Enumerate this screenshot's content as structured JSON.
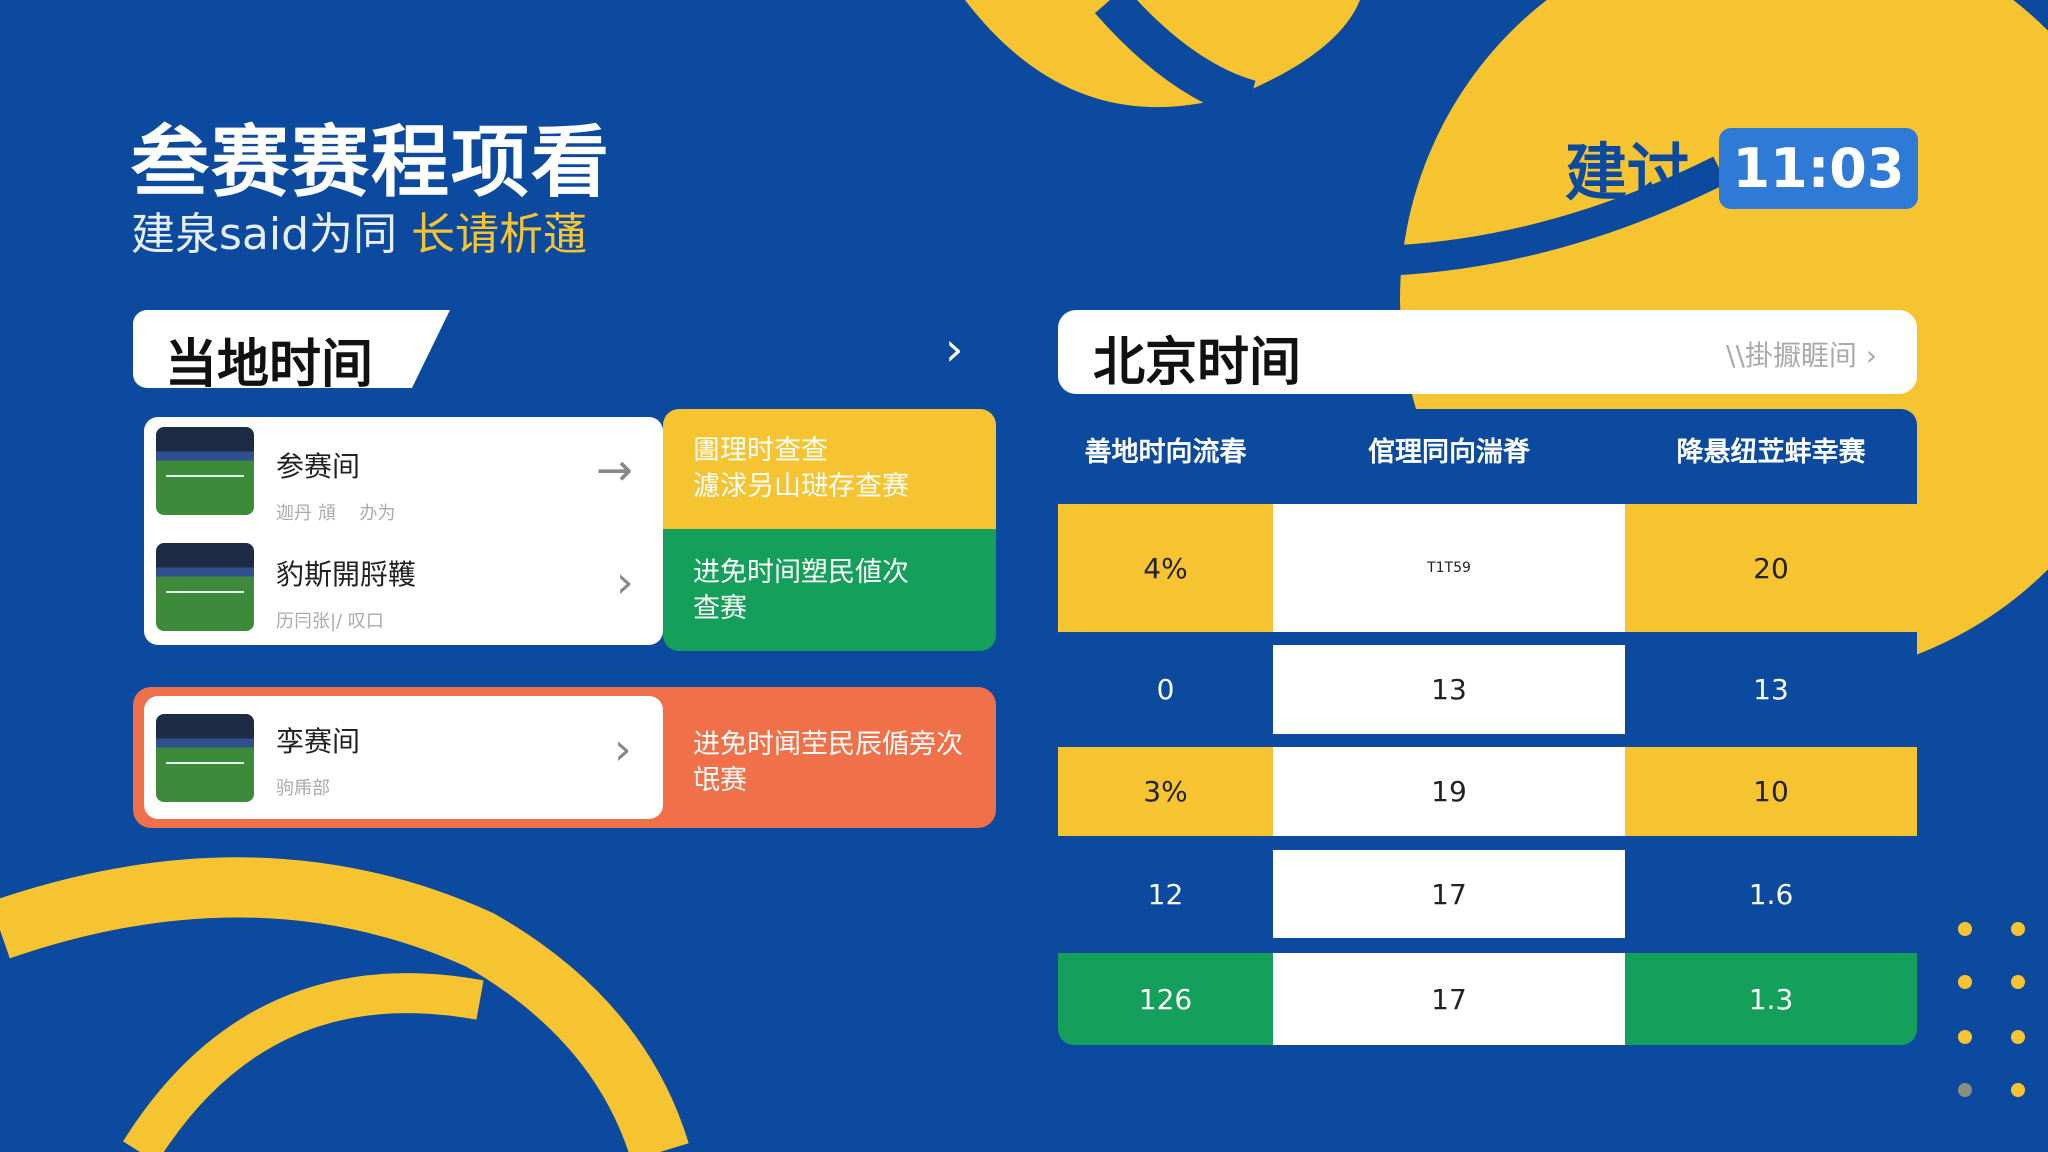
{
  "header": {
    "title": "叁赛赛程项看",
    "subtitle_plain": "建泉said为同",
    "subtitle_highlight": "长请析蓪"
  },
  "clock": {
    "label": "建讨",
    "time": "11:03"
  },
  "local": {
    "tab_label": "当地时间",
    "items": [
      {
        "title": "参赛间",
        "sub": "迦丹 頏　 办为",
        "side": "圕理时查查\n濾浗叧山琎存查赛",
        "side_color": "#f6c431"
      },
      {
        "title": "豹斯開脟韄",
        "sub": "历冃张|/ 叹口",
        "side": "进免时间塑民値次\n查赛",
        "side_color": "#14a05a"
      },
      {
        "title": "孪赛间",
        "sub": "驹乕部",
        "side": "进免时闻茔民⾠偱旁次\n氓赛",
        "side_color": "#f0704a"
      }
    ]
  },
  "beijing": {
    "tab_label": "北京时间",
    "link_label": "\\\\掛擫睚间",
    "columns": [
      "善地时向流春",
      "倌理同向湍脊",
      "降悬纽苙蚌幸赛"
    ],
    "rows": [
      {
        "cells": [
          "4%",
          "T1T59",
          "20"
        ],
        "color": "#f6c431"
      },
      {
        "cells": [
          "0",
          "13",
          "13"
        ],
        "color": "#0b4a9e"
      },
      {
        "cells": [
          "3%",
          "19",
          "10"
        ],
        "color": "#f6c431"
      },
      {
        "cells": [
          "12",
          "17",
          "1.6"
        ],
        "color": "#0b4a9e"
      },
      {
        "cells": [
          "126",
          "17",
          "1.3"
        ],
        "color": "#14a05a"
      }
    ]
  },
  "colors": {
    "background": "#0b4a9e",
    "yellow": "#f6c431",
    "green": "#14a05a",
    "orange": "#f0704a",
    "badge": "#2e7ad6"
  }
}
